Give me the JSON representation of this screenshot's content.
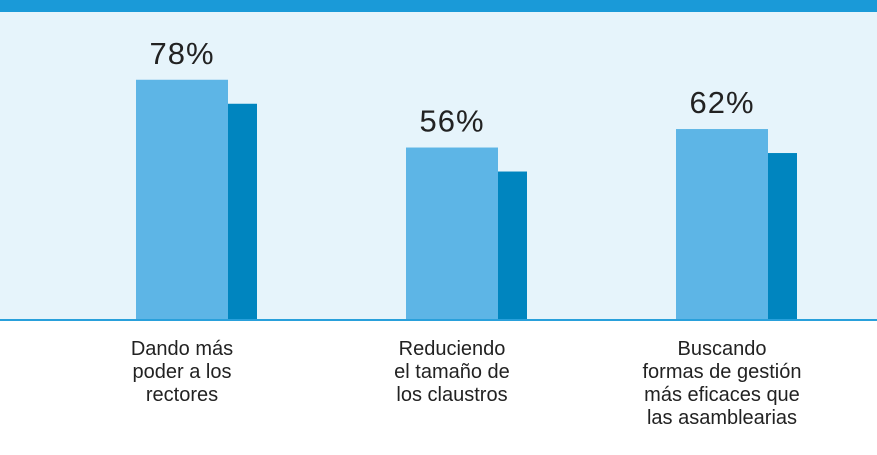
{
  "chart_data": {
    "type": "bar",
    "categories": [
      "Dando más\npoder a los\nrectores",
      "Reduciendo\nel tamaño de\nlos claustros",
      "Buscando\nformas de gestión\nmás eficaces que\nlas asamblearias"
    ],
    "values": [
      78,
      56,
      62
    ],
    "value_labels": [
      "78%",
      "56%",
      "62%"
    ],
    "color": "#5db5e6",
    "side_color": "#0085bf",
    "ylim": [
      0,
      100
    ]
  }
}
